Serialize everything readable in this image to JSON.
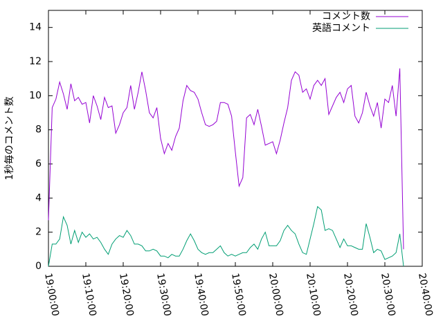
{
  "chart_data": {
    "type": "line",
    "ylabel": "1秒毎のコメント数",
    "x": [
      "19:00:00",
      "19:01:00",
      "19:02:00",
      "19:03:00",
      "19:04:00",
      "19:05:00",
      "19:06:00",
      "19:07:00",
      "19:08:00",
      "19:09:00",
      "19:10:00",
      "19:11:00",
      "19:12:00",
      "19:13:00",
      "19:14:00",
      "19:15:00",
      "19:16:00",
      "19:17:00",
      "19:18:00",
      "19:19:00",
      "19:20:00",
      "19:21:00",
      "19:22:00",
      "19:23:00",
      "19:24:00",
      "19:25:00",
      "19:26:00",
      "19:27:00",
      "19:28:00",
      "19:29:00",
      "19:30:00",
      "19:31:00",
      "19:32:00",
      "19:33:00",
      "19:34:00",
      "19:35:00",
      "19:36:00",
      "19:37:00",
      "19:38:00",
      "19:39:00",
      "19:40:00",
      "19:41:00",
      "19:42:00",
      "19:43:00",
      "19:44:00",
      "19:45:00",
      "19:46:00",
      "19:47:00",
      "19:48:00",
      "19:49:00",
      "19:50:00",
      "19:51:00",
      "19:52:00",
      "19:53:00",
      "19:54:00",
      "19:55:00",
      "19:56:00",
      "19:57:00",
      "19:58:00",
      "19:59:00",
      "20:00:00",
      "20:01:00",
      "20:02:00",
      "20:03:00",
      "20:04:00",
      "20:05:00",
      "20:06:00",
      "20:07:00",
      "20:08:00",
      "20:09:00",
      "20:10:00",
      "20:11:00",
      "20:12:00",
      "20:13:00",
      "20:14:00",
      "20:15:00",
      "20:16:00",
      "20:17:00",
      "20:18:00",
      "20:19:00",
      "20:20:00",
      "20:21:00",
      "20:22:00",
      "20:23:00",
      "20:24:00",
      "20:25:00",
      "20:26:00",
      "20:27:00",
      "20:28:00",
      "20:29:00",
      "20:30:00",
      "20:31:00",
      "20:32:00",
      "20:33:00",
      "20:34:00",
      "20:35:00"
    ],
    "series": [
      {
        "name": "コメント数",
        "color": "#9400d3",
        "values": [
          2.7,
          9.3,
          9.8,
          10.8,
          10.1,
          9.2,
          10.7,
          9.7,
          9.9,
          9.5,
          9.6,
          8.4,
          10.0,
          9.4,
          8.6,
          9.9,
          9.3,
          9.4,
          7.8,
          8.3,
          9.0,
          9.3,
          10.6,
          9.2,
          10.2,
          11.4,
          10.3,
          9.0,
          8.7,
          9.3,
          7.5,
          6.6,
          7.2,
          6.8,
          7.6,
          8.1,
          9.7,
          10.6,
          10.3,
          10.2,
          9.8,
          9.0,
          8.3,
          8.2,
          8.3,
          8.5,
          9.6,
          9.6,
          9.5,
          8.8,
          6.7,
          4.7,
          5.2,
          8.7,
          8.9,
          8.3,
          9.2,
          8.2,
          7.1,
          7.2,
          7.3,
          6.6,
          7.4,
          8.4,
          9.3,
          10.9,
          11.4,
          11.2,
          10.2,
          10.4,
          9.8,
          10.6,
          10.9,
          10.6,
          11.0,
          8.9,
          9.4,
          9.9,
          10.2,
          9.6,
          10.4,
          10.6,
          8.8,
          8.4,
          9.0,
          10.2,
          9.4,
          8.8,
          9.6,
          8.1,
          9.8,
          9.6,
          10.6,
          8.8,
          11.6,
          1.0
        ]
      },
      {
        "name": "英語コメント",
        "color": "#009e73",
        "values": [
          0.0,
          1.3,
          1.3,
          1.6,
          2.9,
          2.4,
          1.3,
          2.1,
          1.4,
          2.0,
          1.7,
          1.9,
          1.6,
          1.7,
          1.4,
          1.0,
          0.7,
          1.3,
          1.6,
          1.8,
          1.7,
          2.1,
          1.8,
          1.3,
          1.3,
          1.2,
          0.9,
          0.9,
          1.0,
          0.9,
          0.6,
          0.6,
          0.5,
          0.7,
          0.6,
          0.6,
          1.0,
          1.5,
          1.9,
          1.5,
          1.0,
          0.8,
          0.7,
          0.8,
          0.8,
          1.0,
          1.2,
          0.8,
          0.6,
          0.7,
          0.6,
          0.7,
          0.8,
          0.8,
          1.1,
          1.3,
          1.0,
          1.6,
          2.0,
          1.2,
          1.2,
          1.2,
          1.5,
          2.1,
          2.4,
          2.1,
          1.9,
          1.3,
          0.8,
          0.7,
          1.6,
          2.5,
          3.5,
          3.3,
          2.1,
          2.2,
          2.1,
          1.6,
          1.1,
          1.6,
          1.2,
          1.2,
          1.1,
          1.0,
          1.0,
          2.5,
          1.7,
          0.8,
          1.0,
          0.9,
          0.4,
          0.5,
          0.6,
          0.8,
          1.9,
          0.0
        ]
      }
    ],
    "xlim": [
      "19:00:00",
      "20:40:00"
    ],
    "xticks": [
      "19:00:00",
      "19:10:00",
      "19:20:00",
      "19:30:00",
      "19:40:00",
      "19:50:00",
      "20:00:00",
      "20:10:00",
      "20:20:00",
      "20:30:00",
      "20:40:00"
    ],
    "ylim": [
      0,
      15
    ],
    "yticks": [
      0,
      2,
      4,
      6,
      8,
      10,
      12,
      14
    ],
    "legend": "top-right"
  }
}
